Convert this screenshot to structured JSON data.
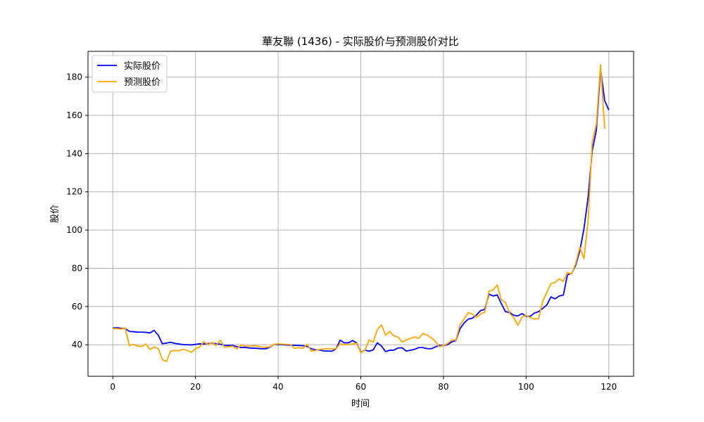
{
  "chart_data": {
    "type": "line",
    "title": "華友聯 (1436) - 实际股价与预测股价对比",
    "xlabel": "时间",
    "ylabel": "股价",
    "xlim": [
      -6,
      126
    ],
    "ylim": [
      23.5,
      193.5
    ],
    "xticks": [
      0,
      20,
      40,
      60,
      80,
      100,
      120
    ],
    "yticks": [
      40,
      60,
      80,
      100,
      120,
      140,
      160,
      180
    ],
    "grid": true,
    "legend_position": "top-left",
    "series": [
      {
        "name": "实际股价",
        "color": "#0000ff",
        "x": [
          0,
          1,
          2,
          3,
          4,
          5,
          6,
          7,
          8,
          9,
          10,
          11,
          12,
          13,
          14,
          15,
          16,
          17,
          18,
          19,
          20,
          21,
          22,
          23,
          24,
          25,
          26,
          27,
          28,
          29,
          30,
          31,
          32,
          33,
          34,
          35,
          36,
          37,
          38,
          39,
          40,
          41,
          42,
          43,
          44,
          45,
          46,
          47,
          48,
          49,
          50,
          51,
          52,
          53,
          54,
          55,
          56,
          57,
          58,
          59,
          60,
          61,
          62,
          63,
          64,
          65,
          66,
          67,
          68,
          69,
          70,
          71,
          72,
          73,
          74,
          75,
          76,
          77,
          78,
          79,
          80,
          81,
          82,
          83,
          84,
          85,
          86,
          87,
          88,
          89,
          90,
          91,
          92,
          93,
          94,
          95,
          96,
          97,
          98,
          99,
          100,
          101,
          102,
          103,
          104,
          105,
          106,
          107,
          108,
          109,
          110,
          111,
          112,
          113,
          114,
          115,
          116,
          117,
          118,
          119,
          120
        ],
        "values": [
          48.8,
          48.9,
          48.6,
          48.4,
          47.0,
          46.8,
          46.6,
          46.6,
          46.5,
          46.2,
          47.5,
          45.0,
          40.5,
          40.9,
          41.3,
          40.7,
          40.4,
          40.1,
          40.0,
          39.9,
          40.2,
          40.5,
          40.4,
          40.6,
          40.9,
          40.5,
          40.3,
          39.7,
          39.6,
          39.7,
          39.0,
          38.6,
          38.6,
          38.3,
          38.2,
          38.1,
          37.9,
          37.9,
          38.7,
          40.2,
          40.1,
          40.0,
          39.9,
          39.8,
          39.7,
          39.6,
          39.5,
          39.1,
          37.9,
          37.4,
          37.2,
          36.8,
          36.7,
          36.6,
          37.8,
          42.4,
          41.0,
          41.0,
          42.2,
          41.0,
          36.0,
          37.2,
          36.6,
          37.3,
          41.0,
          39.3,
          36.4,
          37.1,
          37.2,
          38.3,
          38.4,
          36.7,
          37.1,
          37.6,
          38.5,
          38.5,
          38.0,
          37.9,
          38.8,
          39.7,
          39.6,
          40.0,
          41.5,
          42.2,
          48.4,
          51.4,
          53.4,
          53.9,
          55.6,
          57.9,
          58.5,
          66.5,
          65.5,
          66.1,
          61.5,
          57.3,
          56.9,
          55.4,
          55.1,
          56.3,
          54.9,
          54.9,
          56.6,
          57.3,
          59.0,
          60.8,
          65.0,
          64.0,
          65.5,
          66.0,
          76.6,
          77.3,
          81.7,
          89.2,
          100.8,
          117.3,
          141.6,
          152.4,
          184.2,
          167.7,
          162.8
        ]
      },
      {
        "name": "预测股价",
        "color": "#ffa500",
        "x": [
          0,
          1,
          2,
          3,
          4,
          5,
          6,
          7,
          8,
          9,
          10,
          11,
          12,
          13,
          14,
          15,
          16,
          17,
          18,
          19,
          20,
          21,
          22,
          23,
          24,
          25,
          26,
          27,
          28,
          29,
          30,
          31,
          32,
          33,
          34,
          35,
          36,
          37,
          38,
          39,
          40,
          41,
          42,
          43,
          44,
          45,
          46,
          47,
          48,
          49,
          50,
          51,
          52,
          53,
          54,
          55,
          56,
          57,
          58,
          59,
          60,
          61,
          62,
          63,
          64,
          65,
          66,
          67,
          68,
          69,
          70,
          71,
          72,
          73,
          74,
          75,
          76,
          77,
          78,
          79,
          80,
          81,
          82,
          83,
          84,
          85,
          86,
          87,
          88,
          89,
          90,
          91,
          92,
          93,
          94,
          95,
          96,
          97,
          98,
          99,
          100,
          101,
          102,
          103,
          104,
          105,
          106,
          107,
          108,
          109,
          110,
          111,
          112,
          113,
          114,
          115,
          116,
          117,
          118,
          119
        ],
        "values": [
          48.5,
          48.4,
          48.2,
          48.8,
          39.5,
          40.2,
          39.3,
          39.1,
          40.4,
          37.5,
          38.8,
          38.0,
          32.2,
          31.3,
          36.7,
          37.0,
          36.9,
          37.6,
          37.0,
          36.1,
          37.8,
          38.8,
          41.6,
          40.1,
          41.2,
          39.6,
          42.4,
          38.8,
          38.9,
          39.3,
          37.8,
          39.8,
          39.3,
          39.2,
          39.5,
          39.3,
          38.8,
          38.7,
          38.9,
          40.2,
          40.5,
          40.3,
          40.2,
          40.1,
          38.1,
          38.5,
          38.1,
          40.3,
          36.7,
          37.0,
          37.5,
          37.8,
          38.0,
          37.8,
          37.9,
          40.5,
          40.0,
          40.1,
          40.4,
          40.8,
          35.8,
          37.1,
          42.4,
          41.4,
          47.9,
          50.4,
          45.0,
          47.0,
          44.6,
          44.1,
          41.4,
          42.5,
          43.3,
          44.1,
          43.3,
          45.8,
          45.2,
          43.7,
          41.9,
          39.0,
          39.6,
          40.6,
          42.5,
          42.4,
          50.4,
          53.5,
          56.9,
          56.0,
          54.4,
          56.1,
          57.1,
          67.9,
          68.7,
          71.3,
          63.5,
          62.1,
          56.5,
          54.2,
          50.1,
          54.5,
          55.4,
          54.2,
          53.5,
          53.6,
          62.7,
          67.4,
          72.0,
          72.6,
          74.5,
          73.2,
          77.8,
          77.0,
          82.6,
          91.1,
          85.0,
          105.3,
          146.1,
          155.4,
          186.5,
          153.0
        ]
      }
    ]
  }
}
